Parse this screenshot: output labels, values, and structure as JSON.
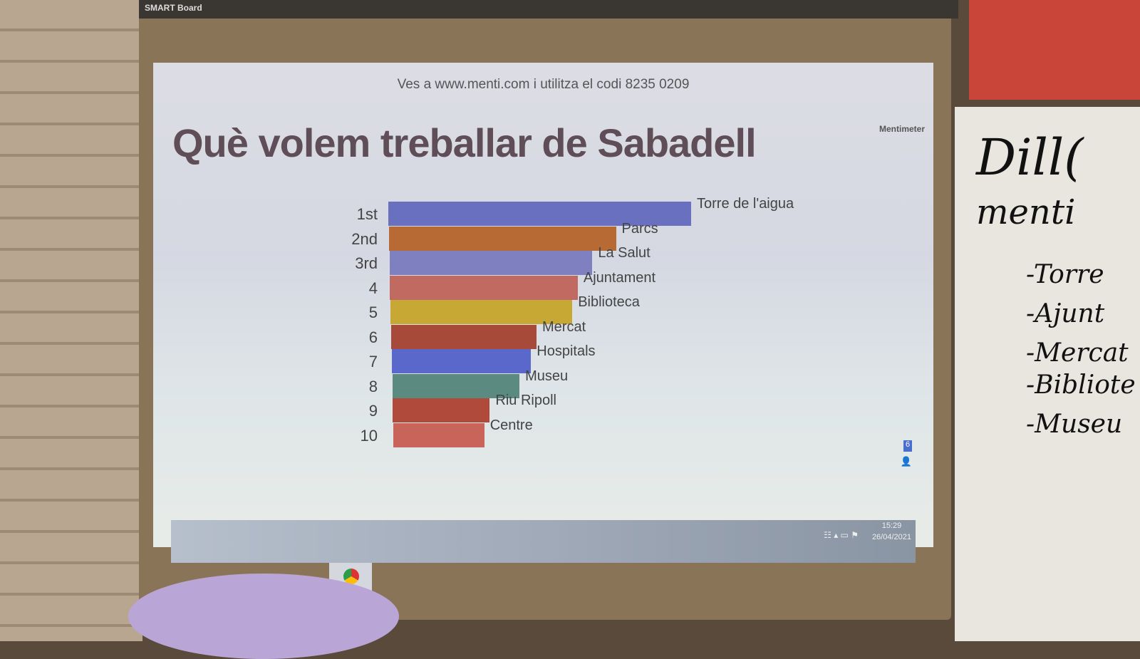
{
  "browser": {
    "brand": "SMART Board"
  },
  "slide": {
    "join_text": "Ves a www.menti.com i utilitza el codi 8235 0209",
    "title": "Què volem treballar de Sabadell",
    "brand": "Mentimeter",
    "participants": "6"
  },
  "taskbar": {
    "time": "15:29",
    "date": "26/04/2021"
  },
  "whiteboard": [
    "Dill(",
    "menti",
    "-Torre",
    "-Ajunt",
    "-Mercat",
    "-Bibliote",
    "-Museu"
  ],
  "chart_data": {
    "type": "bar",
    "orientation": "horizontal",
    "title": "Què volem treballar de Sabadell",
    "ranks": [
      "1st",
      "2nd",
      "3rd",
      "4",
      "5",
      "6",
      "7",
      "8",
      "9",
      "10"
    ],
    "categories": [
      "Torre de l'aigua",
      "Parcs",
      "La Salut",
      "Ajuntament",
      "Biblioteca",
      "Mercat",
      "Hospitals",
      "Museu",
      "Riu Ripoll",
      "Centre"
    ],
    "values": [
      100,
      75,
      67,
      62,
      60,
      48,
      46,
      42,
      32,
      30
    ],
    "colors": [
      "#6a70c0",
      "#b86a35",
      "#7e80c0",
      "#c06a62",
      "#c8a835",
      "#a84a3a",
      "#5a68cc",
      "#5a8a80",
      "#b04a3a",
      "#c8645a"
    ],
    "grid": false,
    "legend": "none"
  }
}
